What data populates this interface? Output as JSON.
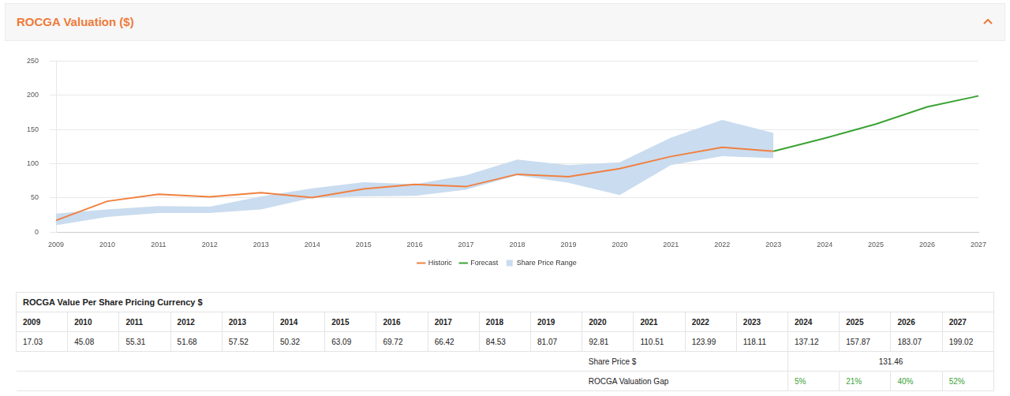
{
  "header": {
    "title": "ROCGA Valuation ($)"
  },
  "chart_data": {
    "type": "line",
    "categories": [
      "2009",
      "2010",
      "2011",
      "2012",
      "2013",
      "2014",
      "2015",
      "2016",
      "2017",
      "2018",
      "2019",
      "2020",
      "2021",
      "2022",
      "2023",
      "2024",
      "2025",
      "2026",
      "2027"
    ],
    "series": [
      {
        "name": "Historic",
        "color": "#f0803f",
        "values": [
          17.03,
          45.08,
          55.31,
          51.68,
          57.52,
          50.32,
          63.09,
          69.72,
          66.42,
          84.53,
          81.07,
          92.81,
          110.51,
          123.99,
          118.11,
          null,
          null,
          null,
          null
        ]
      },
      {
        "name": "Forecast",
        "color": "#3aa335",
        "values": [
          null,
          null,
          null,
          null,
          null,
          null,
          null,
          null,
          null,
          null,
          null,
          null,
          null,
          null,
          118.11,
          137.12,
          157.87,
          183.07,
          199.02
        ]
      },
      {
        "name": "Share Price Range",
        "type": "area",
        "color": "#cadcef",
        "low": [
          10,
          22,
          28,
          28,
          33,
          50,
          52,
          53,
          62,
          83,
          72,
          54,
          98,
          111,
          108,
          null,
          null,
          null,
          null
        ],
        "high": [
          27,
          33,
          38,
          37,
          52,
          64,
          73,
          70,
          83,
          106,
          98,
          102,
          138,
          164,
          145,
          null,
          null,
          null,
          null
        ]
      }
    ],
    "ylim": [
      0,
      250
    ],
    "yticks": [
      0,
      50,
      100,
      150,
      200,
      250
    ],
    "grid": true,
    "legend": "bottom"
  },
  "table": {
    "title": "ROCGA Value Per Share Pricing Currency $",
    "columns": [
      "2009",
      "2010",
      "2011",
      "2012",
      "2013",
      "2014",
      "2015",
      "2016",
      "2017",
      "2018",
      "2019",
      "2020",
      "2021",
      "2022",
      "2023",
      "2024",
      "2025",
      "2026",
      "2027"
    ],
    "rows": [
      [
        "17.03",
        "45.08",
        "55.31",
        "51.68",
        "57.52",
        "50.32",
        "63.09",
        "69.72",
        "66.42",
        "84.53",
        "81.07",
        "92.81",
        "110.51",
        "123.99",
        "118.11",
        "137.12",
        "157.87",
        "183.07",
        "199.02"
      ]
    ],
    "share_price": {
      "label": "Share Price $",
      "value": "131.46"
    },
    "valuation_gap": {
      "label": "ROCGA Valuation Gap",
      "values": [
        "5%",
        "21%",
        "40%",
        "52%"
      ]
    }
  }
}
